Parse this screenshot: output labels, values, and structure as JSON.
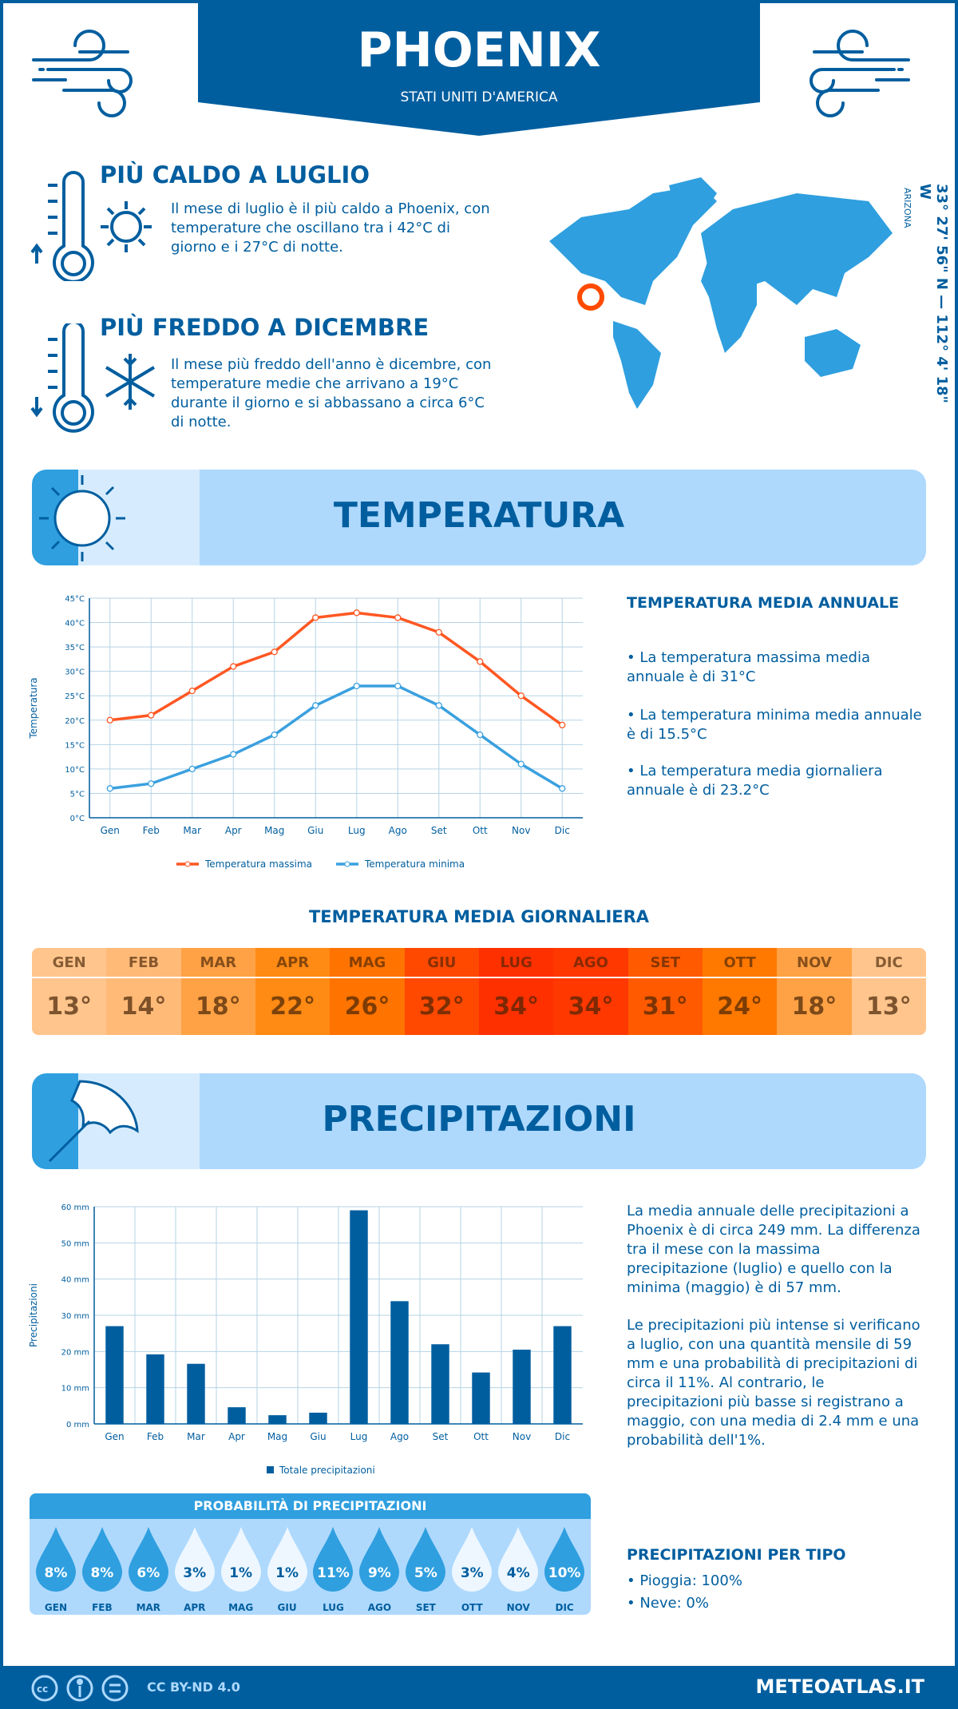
{
  "header": {
    "city": "PHOENIX",
    "country": "STATI UNITI D'AMERICA"
  },
  "hottest": {
    "title": "PIÙ CALDO A LUGLIO",
    "text": "Il mese di luglio è il più caldo a Phoenix, con temperature che oscillano tra i 42°C di giorno e i 27°C di notte."
  },
  "coldest": {
    "title": "PIÙ FREDDO A DICEMBRE",
    "text": "Il mese più freddo dell'anno è dicembre, con temperature medie che arrivano a 19°C durante il giorno e si abbassano a circa 6°C di notte."
  },
  "location": {
    "coords": "33° 27' 56\" N — 112° 4' 18\" W",
    "region": "ARIZONA"
  },
  "temperature": {
    "banner": "TEMPERATURA",
    "annual_title": "TEMPERATURA MEDIA ANNUALE",
    "bullets": [
      "• La temperatura massima media annuale è di 31°C",
      "• La temperatura minima media annuale è di 15.5°C",
      "• La temperatura media giornaliera annuale è di 23.2°C"
    ],
    "daily_title": "TEMPERATURA MEDIA GIORNALIERA",
    "daily": [
      {
        "m": "GEN",
        "v": "13°",
        "color": "#ffc58c"
      },
      {
        "m": "FEB",
        "v": "14°",
        "color": "#ffba78"
      },
      {
        "m": "MAR",
        "v": "18°",
        "color": "#ffa245"
      },
      {
        "m": "APR",
        "v": "22°",
        "color": "#ff8a14"
      },
      {
        "m": "MAG",
        "v": "26°",
        "color": "#ff7300"
      },
      {
        "m": "GIU",
        "v": "32°",
        "color": "#ff4800"
      },
      {
        "m": "LUG",
        "v": "34°",
        "color": "#ff3000"
      },
      {
        "m": "AGO",
        "v": "34°",
        "color": "#ff3800"
      },
      {
        "m": "SET",
        "v": "31°",
        "color": "#ff5a00"
      },
      {
        "m": "OTT",
        "v": "24°",
        "color": "#ff7800"
      },
      {
        "m": "NOV",
        "v": "18°",
        "color": "#ffa245"
      },
      {
        "m": "DIC",
        "v": "13°",
        "color": "#ffc58c"
      }
    ]
  },
  "precipitation": {
    "banner": "PRECIPITAZIONI",
    "text1": "La media annuale delle precipitazioni a Phoenix è di circa 249 mm. La differenza tra il mese con la massima precipitazione (luglio) e quello con la minima (maggio) è di 57 mm.",
    "text2": "Le precipitazioni più intense si verificano a luglio, con una quantità mensile di 59 mm e una probabilità di precipitazioni di circa il 11%. Al contrario, le precipitazioni più basse si registrano a maggio, con una media di 2.4 mm e una probabilità dell'1%.",
    "prob_title": "PROBABILITÀ DI PRECIPITAZIONI",
    "prob": [
      {
        "m": "GEN",
        "v": "8%"
      },
      {
        "m": "FEB",
        "v": "8%"
      },
      {
        "m": "MAR",
        "v": "6%"
      },
      {
        "m": "APR",
        "v": "3%"
      },
      {
        "m": "MAG",
        "v": "1%"
      },
      {
        "m": "GIU",
        "v": "1%"
      },
      {
        "m": "LUG",
        "v": "11%"
      },
      {
        "m": "AGO",
        "v": "9%"
      },
      {
        "m": "SET",
        "v": "5%"
      },
      {
        "m": "OTT",
        "v": "3%"
      },
      {
        "m": "NOV",
        "v": "4%"
      },
      {
        "m": "DIC",
        "v": "10%"
      }
    ],
    "type_title": "PRECIPITAZIONI PER TIPO",
    "types": [
      "• Pioggia: 100%",
      "• Neve: 0%"
    ]
  },
  "chart_data": [
    {
      "type": "line",
      "categories": [
        "Gen",
        "Feb",
        "Mar",
        "Apr",
        "Mag",
        "Giu",
        "Lug",
        "Ago",
        "Set",
        "Ott",
        "Nov",
        "Dic"
      ],
      "ylabel": "Temperatura",
      "ylim": [
        0,
        45
      ],
      "yticks": [
        "0°C",
        "5°C",
        "10°C",
        "15°C",
        "20°C",
        "25°C",
        "30°C",
        "35°C",
        "40°C",
        "45°C"
      ],
      "grid": true,
      "legend": "bottom",
      "series": [
        {
          "name": "Temperatura massima",
          "color": "#ff5722",
          "values": [
            20,
            21,
            26,
            31,
            34,
            41,
            42,
            41,
            38,
            32,
            25,
            19
          ]
        },
        {
          "name": "Temperatura minima",
          "color": "#3aa0df",
          "values": [
            6,
            7,
            10,
            13,
            17,
            23,
            27,
            27,
            23,
            17,
            11,
            6
          ]
        }
      ]
    },
    {
      "type": "bar",
      "categories": [
        "Gen",
        "Feb",
        "Mar",
        "Apr",
        "Mag",
        "Giu",
        "Lug",
        "Ago",
        "Set",
        "Ott",
        "Nov",
        "Dic"
      ],
      "ylabel": "Precipitazioni",
      "ylim": [
        0,
        60
      ],
      "yticks": [
        "0 mm",
        "10 mm",
        "20 mm",
        "30 mm",
        "40 mm",
        "50 mm",
        "60 mm"
      ],
      "grid": true,
      "legend": "bottom",
      "series": [
        {
          "name": "Totale precipitazioni",
          "color": "#005e9f",
          "values": [
            27,
            19.2,
            16.6,
            4.6,
            2.4,
            3.1,
            59,
            33.9,
            22,
            14.2,
            20.5,
            27
          ]
        }
      ]
    }
  ],
  "footer": {
    "license": "CC BY-ND 4.0",
    "site": "METEOATLAS.IT"
  },
  "colors": {
    "primary": "#005e9f",
    "accent": "#2f9fdf",
    "light": "#aed9fd"
  }
}
